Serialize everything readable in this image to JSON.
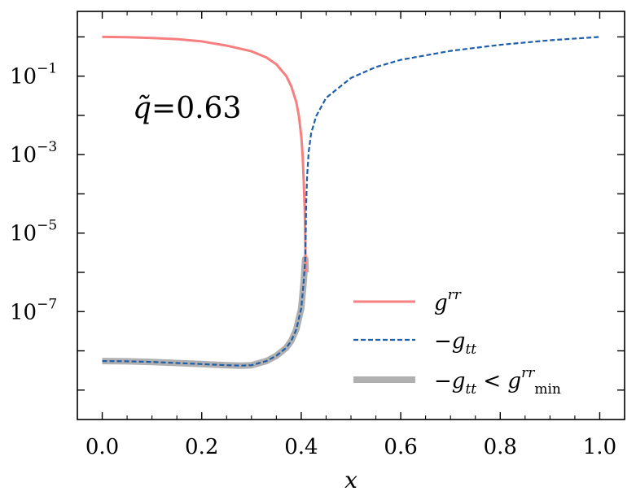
{
  "chart_data": {
    "type": "line",
    "xlabel": "x",
    "ylabel": "",
    "xlim": [
      -0.05,
      1.05
    ],
    "ylim_log10": [
      -9.75,
      0.65
    ],
    "y_scale": "log",
    "grid": false,
    "legend_position": "lower-right",
    "x_ticks": [
      "0.0",
      "0.2",
      "0.4",
      "0.6",
      "0.8",
      "1.0"
    ],
    "x_tick_values": [
      0.0,
      0.2,
      0.4,
      0.6,
      0.8,
      1.0
    ],
    "y_ticks": [
      {
        "base": "10",
        "exponent": "−1",
        "log10": -1
      },
      {
        "base": "10",
        "exponent": "−3",
        "log10": -3
      },
      {
        "base": "10",
        "exponent": "−5",
        "log10": -5
      },
      {
        "base": "10",
        "exponent": "−7",
        "log10": -7
      }
    ],
    "annotation": {
      "symbol": "q̃",
      "eq": "=0.63"
    },
    "series": [
      {
        "name": "g^rr",
        "color": "#f77f7f",
        "style": "solid",
        "x": [
          0.0,
          0.05,
          0.1,
          0.15,
          0.2,
          0.25,
          0.3,
          0.33,
          0.35,
          0.37,
          0.38,
          0.39,
          0.395,
          0.4,
          0.403,
          0.405,
          0.407,
          0.408,
          0.409
        ],
        "y": [
          1.0,
          0.98,
          0.94,
          0.88,
          0.77,
          0.6,
          0.43,
          0.3,
          0.2,
          0.1,
          0.055,
          0.022,
          0.01,
          0.003,
          0.0009,
          0.0002,
          4e-05,
          8e-06,
          1e-06
        ]
      },
      {
        "name": "−g_tt",
        "color": "#1f5fa8",
        "style": "dashed",
        "x": [
          0.0,
          0.05,
          0.1,
          0.15,
          0.2,
          0.25,
          0.28,
          0.3,
          0.33,
          0.35,
          0.37,
          0.38,
          0.39,
          0.4,
          0.405,
          0.408,
          0.409,
          0.41,
          0.412,
          0.415,
          0.42,
          0.43,
          0.45,
          0.5,
          0.55,
          0.6,
          0.7,
          0.8,
          0.9,
          1.0
        ],
        "y": [
          5.5e-09,
          5.4e-09,
          5.2e-09,
          4.9e-09,
          4.6e-09,
          4.3e-09,
          4.2e-09,
          4.3e-09,
          5.5e-09,
          7.5e-09,
          1.2e-08,
          1.8e-08,
          3.5e-08,
          1.2e-07,
          6e-07,
          2.2e-06,
          8e-06,
          6e-05,
          0.0003,
          0.0012,
          0.0035,
          0.0095,
          0.028,
          0.09,
          0.17,
          0.26,
          0.44,
          0.63,
          0.82,
          1.0
        ]
      },
      {
        "name": "−g_tt < g^rr_min",
        "color": "#b0b0b0",
        "style": "thick",
        "x": [
          0.0,
          0.05,
          0.1,
          0.15,
          0.2,
          0.25,
          0.28,
          0.3,
          0.33,
          0.35,
          0.37,
          0.38,
          0.39,
          0.4,
          0.405,
          0.408,
          0.409
        ],
        "y": [
          5.5e-09,
          5.4e-09,
          5.2e-09,
          4.9e-09,
          4.6e-09,
          4.3e-09,
          4.2e-09,
          4.3e-09,
          5.5e-09,
          7.5e-09,
          1.2e-08,
          1.8e-08,
          3.5e-08,
          1.2e-07,
          6e-07,
          2.2e-06,
          1e-06
        ]
      }
    ],
    "legend": [
      {
        "base": "g",
        "sup": "rr",
        "sub": "",
        "tail_text": "",
        "tail_sup": "",
        "tail_sub": ""
      },
      {
        "base": "−g",
        "sup": "",
        "sub": "tt",
        "tail_text": "",
        "tail_sup": "",
        "tail_sub": ""
      },
      {
        "base": "−g",
        "sup": "",
        "sub": "tt",
        "tail_text": " < g",
        "tail_sup": "rr",
        "tail_sub": "min"
      }
    ]
  }
}
